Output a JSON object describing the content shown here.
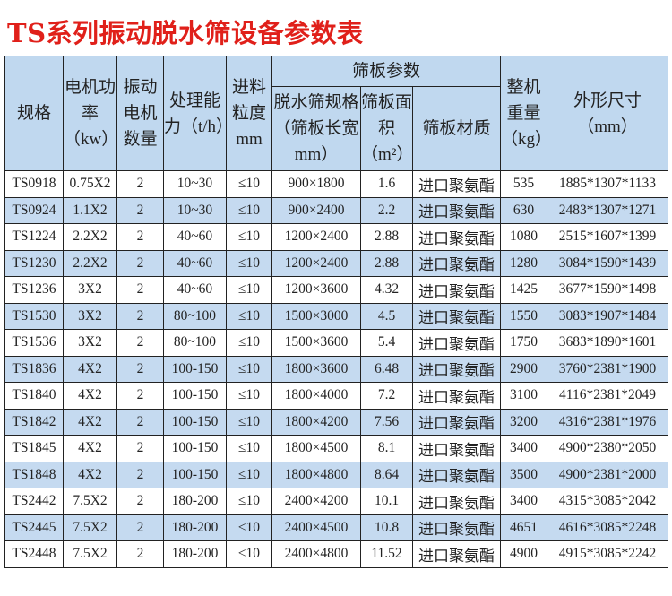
{
  "title": "TS系列振动脱水筛设备参数表",
  "header": {
    "spec": "规格",
    "power": "电机功率（kw）",
    "motors": "振动电机数量",
    "capacity": "处理能力（t/h）",
    "feed": "进料粒度mm",
    "screen_params": "筛板参数",
    "screen_size": "脱水筛规格（筛板长宽mm）",
    "screen_area": "筛板面积（m²）",
    "screen_material": "筛板材质",
    "weight": "整机重量（kg）",
    "dimensions": "外形尺寸（mm）"
  },
  "rows": [
    [
      "TS0918",
      "0.75X2",
      "2",
      "10~30",
      "≤10",
      "900×1800",
      "1.6",
      "进口聚氨酯",
      "535",
      "1885*1307*1133"
    ],
    [
      "TS0924",
      "1.1X2",
      "2",
      "10~30",
      "≤10",
      "900×2400",
      "2.2",
      "进口聚氨酯",
      "630",
      "2483*1307*1271"
    ],
    [
      "TS1224",
      "2.2X2",
      "2",
      "40~60",
      "≤10",
      "1200×2400",
      "2.88",
      "进口聚氨酯",
      "1080",
      "2515*1607*1399"
    ],
    [
      "TS1230",
      "2.2X2",
      "2",
      "40~60",
      "≤10",
      "1200×2400",
      "2.88",
      "进口聚氨酯",
      "1280",
      "3084*1590*1439"
    ],
    [
      "TS1236",
      "3X2",
      "2",
      "40~60",
      "≤10",
      "1200×3600",
      "4.32",
      "进口聚氨酯",
      "1425",
      "3677*1590*1498"
    ],
    [
      "TS1530",
      "3X2",
      "2",
      "80~100",
      "≤10",
      "1500×3000",
      "4.5",
      "进口聚氨酯",
      "1550",
      "3083*1907*1484"
    ],
    [
      "TS1536",
      "3X2",
      "2",
      "80~100",
      "≤10",
      "1500×3600",
      "5.4",
      "进口聚氨酯",
      "1750",
      "3683*1890*1601"
    ],
    [
      "TS1836",
      "4X2",
      "2",
      "100-150",
      "≤10",
      "1800×3600",
      "6.48",
      "进口聚氨酯",
      "2900",
      "3760*2381*1900"
    ],
    [
      "TS1840",
      "4X2",
      "2",
      "100-150",
      "≤10",
      "1800×4000",
      "7.2",
      "进口聚氨酯",
      "3100",
      "4116*2381*2049"
    ],
    [
      "TS1842",
      "4X2",
      "2",
      "100-150",
      "≤10",
      "1800×4200",
      "7.56",
      "进口聚氨酯",
      "3200",
      "4316*2381*1976"
    ],
    [
      "TS1845",
      "4X2",
      "2",
      "100-150",
      "≤10",
      "1800×4500",
      "8.1",
      "进口聚氨酯",
      "3400",
      "4900*2380*2050"
    ],
    [
      "TS1848",
      "4X2",
      "2",
      "100-150",
      "≤10",
      "1800×4800",
      "8.64",
      "进口聚氨酯",
      "3500",
      "4900*2381*2000"
    ],
    [
      "TS2442",
      "7.5X2",
      "2",
      "180-200",
      "≤10",
      "2400×4200",
      "10.1",
      "进口聚氨酯",
      "3400",
      "4315*3085*2042"
    ],
    [
      "TS2445",
      "7.5X2",
      "2",
      "180-200",
      "≤10",
      "2400×4500",
      "10.8",
      "进口聚氨酯",
      "4651",
      "4616*3085*2248"
    ],
    [
      "TS2448",
      "7.5X2",
      "2",
      "180-200",
      "≤10",
      "2400×4800",
      "11.52",
      "进口聚氨酯",
      "4900",
      "4915*3085*2242"
    ]
  ]
}
